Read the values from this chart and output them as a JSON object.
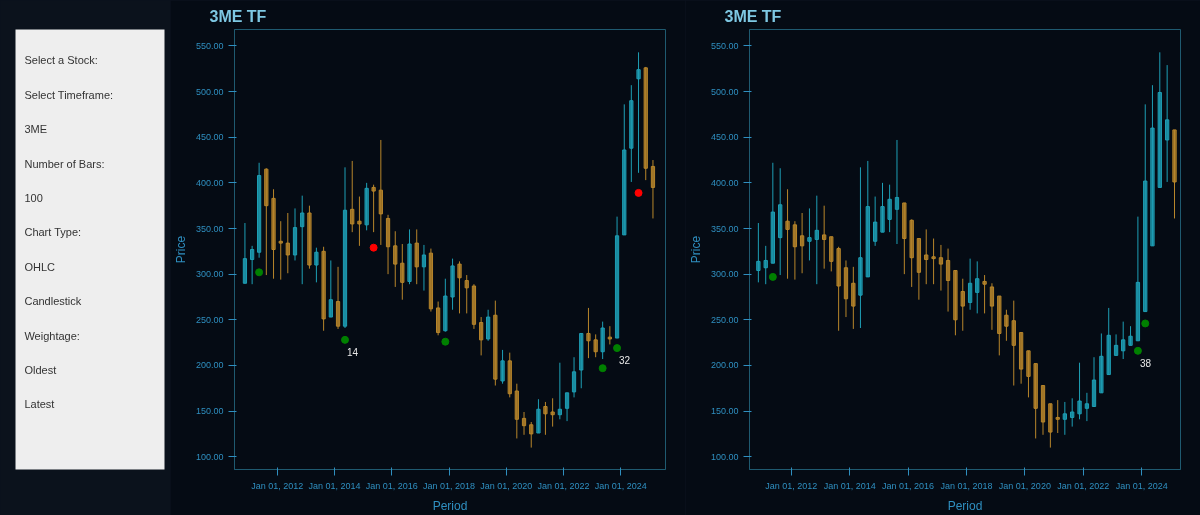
{
  "chart_data": [
    {
      "type": "other",
      "annotations": [
        "Select a Stock:",
        "Select Timeframe:",
        "3ME",
        "Number of Bars:",
        "100",
        "Chart Type:",
        "OHLC",
        "Candlestick",
        "Weightage:",
        "Oldest",
        "Latest"
      ]
    },
    {
      "type": "candlestick",
      "title": "3ME TF",
      "xlabel": "Period",
      "ylabel": "Price",
      "colors": [
        "#1e9fb5",
        "#1e9fb5",
        "#1e9fb5",
        "#b8862b",
        "#b8862b",
        "#b8862b",
        "#b8862b",
        "#1e9fb5",
        "#1e9fb5",
        "#b8862b",
        "#1e9fb5",
        "#b8862b",
        "#1e9fb5",
        "#b8862b",
        "#1e9fb5",
        "#b8862b",
        "#b8862b",
        "#1e9fb5",
        "#b8862b",
        "#b8862b",
        "#b8862b",
        "#b8862b",
        "#b8862b",
        "#1e9fb5",
        "#b8862b",
        "#1e9fb5",
        "#b8862b",
        "#b8862b",
        "#1e9fb5",
        "#1e9fb5",
        "#b8862b",
        "#b8862b",
        "#b8862b",
        "#b8862b",
        "#1e9fb5",
        "#b8862b",
        "#1e9fb5",
        "#b8862b",
        "#b8862b",
        "#b8862b",
        "#b8862b",
        "#1e9fb5",
        "#b8862b",
        "#b8862b",
        "#1e9fb5",
        "#1e9fb5",
        "#1e9fb5",
        "#1e9fb5",
        "#b8862b",
        "#b8862b",
        "#1e9fb5",
        "#b8862b",
        "#1e9fb5",
        "#1e9fb5",
        "#1e9fb5",
        "#1e9fb5",
        "#b8862b",
        "#b8862b"
      ],
      "x": [
        "2010-11-15",
        "2011-02-15",
        "2011-05-15",
        "2011-08-15",
        "2011-11-15",
        "2012-02-15",
        "2012-05-15",
        "2012-08-15",
        "2012-11-15",
        "2013-02-15",
        "2013-05-15",
        "2013-08-15",
        "2013-11-15",
        "2014-02-15",
        "2014-05-15",
        "2014-08-15",
        "2014-11-15",
        "2015-02-15",
        "2015-05-15",
        "2015-08-15",
        "2015-11-15",
        "2016-02-15",
        "2016-05-15",
        "2016-08-15",
        "2016-11-15",
        "2017-02-15",
        "2017-05-15",
        "2017-08-15",
        "2017-11-15",
        "2018-02-15",
        "2018-05-15",
        "2018-08-15",
        "2018-11-15",
        "2019-02-15",
        "2019-05-15",
        "2019-08-15",
        "2019-11-15",
        "2020-02-15",
        "2020-05-15",
        "2020-08-15",
        "2020-11-15",
        "2021-02-15",
        "2021-05-15",
        "2021-08-15",
        "2021-11-15",
        "2022-02-15",
        "2022-05-15",
        "2022-08-15",
        "2022-11-15",
        "2023-02-15",
        "2023-05-15",
        "2023-08-15",
        "2023-11-15",
        "2024-02-15",
        "2024-05-15",
        "2024-08-15",
        "2024-11-15",
        "2025-02-15"
      ],
      "ohlc": [
        [
          290,
          356,
          290,
          317
        ],
        [
          316,
          331,
          289,
          327
        ],
        [
          324,
          422,
          318,
          408
        ],
        [
          415,
          416,
          299,
          375
        ],
        [
          383,
          393,
          295,
          327
        ],
        [
          336,
          358,
          294,
          334
        ],
        [
          334,
          367,
          301,
          321
        ],
        [
          321,
          372,
          315,
          351
        ],
        [
          352,
          386,
          289,
          367
        ],
        [
          367,
          375,
          306,
          310
        ],
        [
          310,
          329,
          291,
          324
        ],
        [
          325,
          330,
          238,
          251
        ],
        [
          253,
          315,
          253,
          272
        ],
        [
          270,
          308,
          240,
          243
        ],
        [
          243,
          417,
          241,
          370
        ],
        [
          371,
          424,
          346,
          355
        ],
        [
          358,
          385,
          331,
          355
        ],
        [
          354,
          400,
          348,
          394
        ],
        [
          395,
          398,
          346,
          391
        ],
        [
          392,
          447,
          332,
          366
        ],
        [
          361,
          365,
          300,
          330
        ],
        [
          331,
          347,
          286,
          311
        ],
        [
          312,
          333,
          272,
          291
        ],
        [
          292,
          349,
          289,
          333
        ],
        [
          334,
          349,
          289,
          308
        ],
        [
          308,
          332,
          282,
          321
        ],
        [
          323,
          328,
          259,
          262
        ],
        [
          263,
          270,
          233,
          236
        ],
        [
          238,
          295,
          237,
          276
        ],
        [
          275,
          317,
          261,
          309
        ],
        [
          311,
          314,
          257,
          296
        ],
        [
          293,
          299,
          257,
          285
        ],
        [
          287,
          289,
          240,
          245
        ],
        [
          247,
          253,
          211,
          228
        ],
        [
          229,
          261,
          227,
          253
        ],
        [
          255,
          271,
          178,
          185
        ],
        [
          183,
          217,
          180,
          205
        ],
        [
          205,
          214,
          165,
          169
        ],
        [
          172,
          180,
          120,
          141
        ],
        [
          142,
          149,
          124,
          134
        ],
        [
          135,
          138,
          110,
          125
        ],
        [
          126,
          163,
          126,
          152
        ],
        [
          155,
          160,
          124,
          147
        ],
        [
          149,
          164,
          133,
          146
        ],
        [
          146,
          203,
          141,
          152
        ],
        [
          153,
          170,
          139,
          170
        ],
        [
          171,
          209,
          165,
          193
        ],
        [
          195,
          235,
          175,
          235
        ],
        [
          235,
          263,
          208,
          227
        ],
        [
          228,
          234,
          209,
          215
        ],
        [
          215,
          248,
          207,
          241
        ],
        [
          231,
          243,
          223,
          229
        ],
        [
          230,
          363,
          230,
          342
        ],
        [
          343,
          486,
          343,
          436
        ],
        [
          438,
          507,
          401,
          490
        ],
        [
          514,
          543,
          411,
          524
        ],
        [
          526,
          527,
          403,
          416
        ],
        [
          418,
          425,
          361,
          395
        ]
      ],
      "series": [
        {
          "type": "scatter",
          "color": "#008000",
          "x": [
            "2011-05-15",
            "2014-05-15",
            "2017-11-15",
            "2023-05-15",
            "2023-11-15"
          ],
          "values": [
            302,
            228,
            226,
            197,
            219
          ]
        },
        {
          "type": "scatter",
          "color": "#ff0000",
          "x": [
            "2015-05-15",
            "2024-08-15"
          ],
          "values": [
            329,
            389
          ]
        }
      ],
      "annotations": [
        {
          "text": "14",
          "x": "2014-05-15",
          "y": 228
        },
        {
          "text": "32",
          "x": "2023-11-15",
          "y": 219
        }
      ],
      "marker": "circle",
      "xlim": [
        "2010-07-05",
        "2025-07-25"
      ],
      "ylim": [
        86,
        568
      ],
      "xticks": [
        {
          "value": "2012-01-01",
          "label": "Jan 01, 2012"
        },
        {
          "value": "2014-01-01",
          "label": "Jan 01, 2014"
        },
        {
          "value": "2016-01-01",
          "label": "Jan 01, 2016"
        },
        {
          "value": "2018-01-01",
          "label": "Jan 01, 2018"
        },
        {
          "value": "2020-01-01",
          "label": "Jan 01, 2020"
        },
        {
          "value": "2022-01-01",
          "label": "Jan 01, 2022"
        },
        {
          "value": "2024-01-01",
          "label": "Jan 01, 2024"
        }
      ],
      "yticks": [
        {
          "value": 100,
          "label": "100.00"
        },
        {
          "value": 150,
          "label": "150.00"
        },
        {
          "value": 200,
          "label": "200.00"
        },
        {
          "value": 250,
          "label": "250.00"
        },
        {
          "value": 300,
          "label": "300.00"
        },
        {
          "value": 350,
          "label": "350.00"
        },
        {
          "value": 400,
          "label": "400.00"
        },
        {
          "value": 450,
          "label": "450.00"
        },
        {
          "value": 500,
          "label": "500.00"
        },
        {
          "value": 550,
          "label": "550.00"
        }
      ]
    },
    {
      "type": "candlestick",
      "title": "3ME TF",
      "xlabel": "Period",
      "ylabel": "Price",
      "colors": [
        "#1e9fb5",
        "#1e9fb5",
        "#1e9fb5",
        "#1e9fb5",
        "#b8862b",
        "#b8862b",
        "#b8862b",
        "#1e9fb5",
        "#1e9fb5",
        "#b8862b",
        "#b8862b",
        "#b8862b",
        "#b8862b",
        "#b8862b",
        "#1e9fb5",
        "#1e9fb5",
        "#1e9fb5",
        "#1e9fb5",
        "#1e9fb5",
        "#1e9fb5",
        "#b8862b",
        "#b8862b",
        "#b8862b",
        "#b8862b",
        "#b8862b",
        "#b8862b",
        "#b8862b",
        "#b8862b",
        "#b8862b",
        "#1e9fb5",
        "#1e9fb5",
        "#b8862b",
        "#b8862b",
        "#b8862b",
        "#b8862b",
        "#b8862b",
        "#b8862b",
        "#b8862b",
        "#b8862b",
        "#b8862b",
        "#b8862b",
        "#b8862b",
        "#1e9fb5",
        "#1e9fb5",
        "#1e9fb5",
        "#1e9fb5",
        "#1e9fb5",
        "#1e9fb5",
        "#1e9fb5",
        "#1e9fb5",
        "#1e9fb5",
        "#1e9fb5",
        "#1e9fb5",
        "#1e9fb5",
        "#1e9fb5",
        "#1e9fb5",
        "#1e9fb5",
        "#b8862b"
      ],
      "x": [
        "2010-11-15",
        "2011-02-15",
        "2011-05-15",
        "2011-08-15",
        "2011-11-15",
        "2012-02-15",
        "2012-05-15",
        "2012-08-15",
        "2012-11-15",
        "2013-02-15",
        "2013-05-15",
        "2013-08-15",
        "2013-11-15",
        "2014-02-15",
        "2014-05-15",
        "2014-08-15",
        "2014-11-15",
        "2015-02-15",
        "2015-05-15",
        "2015-08-15",
        "2015-11-15",
        "2016-02-15",
        "2016-05-15",
        "2016-08-15",
        "2016-11-15",
        "2017-02-15",
        "2017-05-15",
        "2017-08-15",
        "2017-11-15",
        "2018-02-15",
        "2018-05-15",
        "2018-08-15",
        "2018-11-15",
        "2019-02-15",
        "2019-05-15",
        "2019-08-15",
        "2019-11-15",
        "2020-02-15",
        "2020-05-15",
        "2020-08-15",
        "2020-11-15",
        "2021-02-15",
        "2021-05-15",
        "2021-08-15",
        "2021-11-15",
        "2022-02-15",
        "2022-05-15",
        "2022-08-15",
        "2022-11-15",
        "2023-02-15",
        "2023-05-15",
        "2023-08-15",
        "2023-11-15",
        "2024-02-15",
        "2024-05-15",
        "2024-08-15",
        "2024-11-15",
        "2025-02-15"
      ],
      "ohlc": [
        [
          304,
          356,
          291,
          314
        ],
        [
          307,
          331,
          289,
          315
        ],
        [
          312,
          422,
          312,
          368
        ],
        [
          340,
          416,
          299,
          376
        ],
        [
          358,
          393,
          295,
          349
        ],
        [
          354,
          358,
          294,
          330
        ],
        [
          342,
          367,
          301,
          331
        ],
        [
          336,
          372,
          315,
          340
        ],
        [
          338,
          386,
          289,
          348
        ],
        [
          343,
          375,
          306,
          338
        ],
        [
          341,
          341,
          303,
          314
        ],
        [
          328,
          330,
          238,
          287
        ],
        [
          307,
          315,
          253,
          273
        ],
        [
          290,
          308,
          240,
          265
        ],
        [
          277,
          417,
          241,
          318
        ],
        [
          297,
          424,
          297,
          374
        ],
        [
          336,
          385,
          331,
          357
        ],
        [
          346,
          400,
          346,
          374
        ],
        [
          360,
          398,
          346,
          382
        ],
        [
          371,
          447,
          333,
          384
        ],
        [
          378,
          378,
          300,
          339
        ],
        [
          359,
          360,
          286,
          318
        ],
        [
          339,
          339,
          272,
          302
        ],
        [
          321,
          349,
          289,
          316
        ],
        [
          319,
          339,
          289,
          317
        ],
        [
          318,
          332,
          282,
          311
        ],
        [
          315,
          328,
          259,
          293
        ],
        [
          304,
          304,
          233,
          250
        ],
        [
          281,
          295,
          238,
          265
        ],
        [
          269,
          317,
          261,
          290
        ],
        [
          280,
          314,
          257,
          295
        ],
        [
          292,
          299,
          257,
          289
        ],
        [
          286,
          290,
          239,
          265
        ],
        [
          276,
          276,
          211,
          235
        ],
        [
          255,
          261,
          227,
          243
        ],
        [
          249,
          271,
          178,
          222
        ],
        [
          236,
          236,
          180,
          196
        ],
        [
          216,
          216,
          165,
          188
        ],
        [
          202,
          202,
          120,
          153
        ],
        [
          178,
          178,
          124,
          138
        ],
        [
          158,
          158,
          110,
          127
        ],
        [
          143,
          162,
          126,
          141
        ],
        [
          141,
          160,
          124,
          147
        ],
        [
          143,
          164,
          133,
          149
        ],
        [
          147,
          203,
          141,
          161
        ],
        [
          153,
          170,
          139,
          158
        ],
        [
          155,
          209,
          155,
          184
        ],
        [
          170,
          235,
          170,
          210
        ],
        [
          190,
          263,
          190,
          233
        ],
        [
          211,
          234,
          211,
          222
        ],
        [
          216,
          248,
          207,
          228
        ],
        [
          222,
          243,
          222,
          232
        ],
        [
          227,
          363,
          227,
          291
        ],
        [
          259,
          486,
          259,
          402
        ],
        [
          331,
          507,
          331,
          460
        ],
        [
          395,
          543,
          395,
          499
        ],
        [
          447,
          529,
          401,
          469
        ],
        [
          458,
          458,
          361,
          401
        ]
      ],
      "series": [
        {
          "type": "scatter",
          "color": "#008000",
          "x": [
            "2011-05-15",
            "2023-11-15",
            "2024-02-15"
          ],
          "values": [
            297,
            216,
            246
          ]
        }
      ],
      "annotations": [
        {
          "text": "38",
          "x": "2023-11-15",
          "y": 216
        }
      ],
      "marker": "circle",
      "xlim": [
        "2010-07-27",
        "2025-05-01"
      ],
      "ylim": [
        86,
        568
      ],
      "xticks": [
        {
          "value": "2012-01-01",
          "label": "Jan 01, 2012"
        },
        {
          "value": "2014-01-01",
          "label": "Jan 01, 2014"
        },
        {
          "value": "2016-01-01",
          "label": "Jan 01, 2016"
        },
        {
          "value": "2018-01-01",
          "label": "Jan 01, 2018"
        },
        {
          "value": "2020-01-01",
          "label": "Jan 01, 2020"
        },
        {
          "value": "2022-01-01",
          "label": "Jan 01, 2022"
        },
        {
          "value": "2024-01-01",
          "label": "Jan 01, 2024"
        }
      ],
      "yticks": [
        {
          "value": 100,
          "label": "100.00"
        },
        {
          "value": 150,
          "label": "150.00"
        },
        {
          "value": 200,
          "label": "200.00"
        },
        {
          "value": 250,
          "label": "250.00"
        },
        {
          "value": 300,
          "label": "300.00"
        },
        {
          "value": 350,
          "label": "350.00"
        },
        {
          "value": 400,
          "label": "400.00"
        },
        {
          "value": 450,
          "label": "450.00"
        },
        {
          "value": 500,
          "label": "500.00"
        },
        {
          "value": 550,
          "label": "550.00"
        }
      ]
    }
  ]
}
